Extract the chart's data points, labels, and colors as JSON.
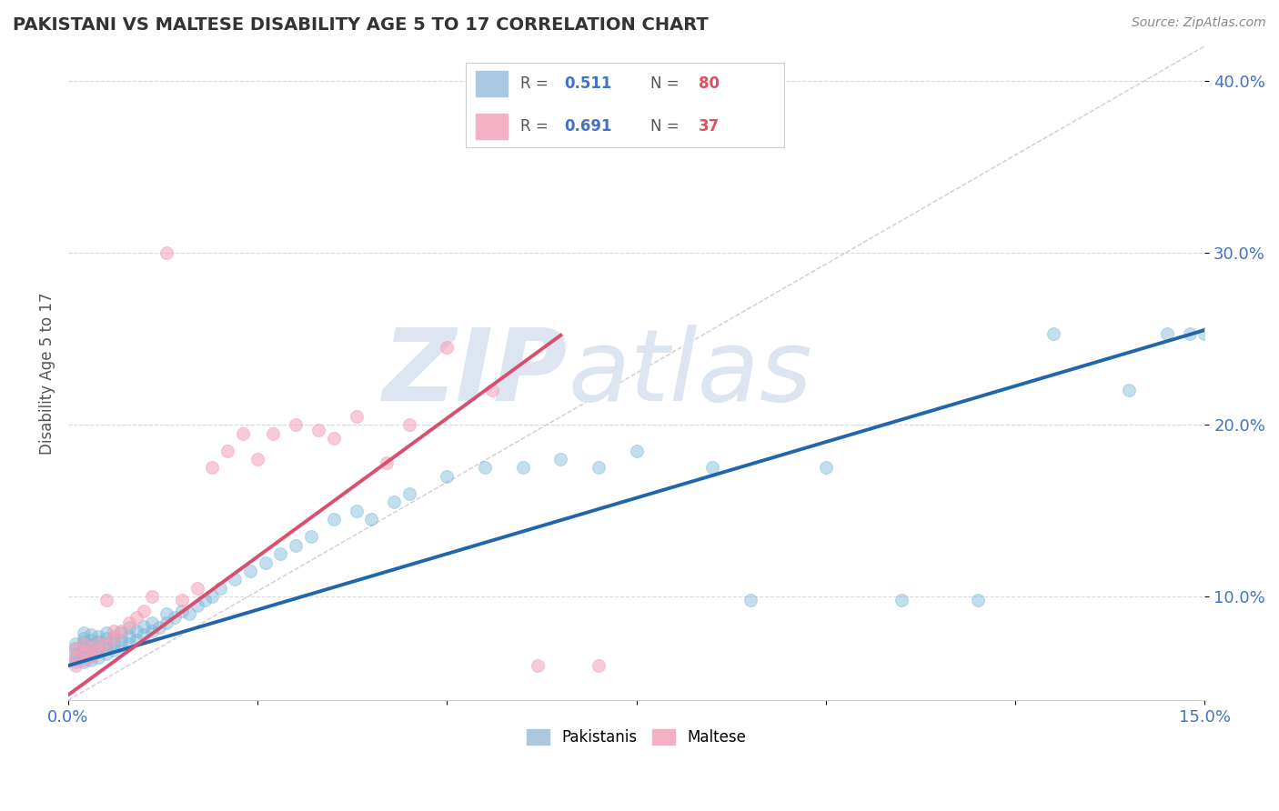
{
  "title": "PAKISTANI VS MALTESE DISABILITY AGE 5 TO 17 CORRELATION CHART",
  "source": "Source: ZipAtlas.com",
  "ylabel_label": "Disability Age 5 to 17",
  "xlim": [
    0.0,
    0.15
  ],
  "ylim": [
    0.04,
    0.42
  ],
  "ytick_positions": [
    0.1,
    0.2,
    0.3,
    0.4
  ],
  "ytick_labels": [
    "10.0%",
    "20.0%",
    "30.0%",
    "40.0%"
  ],
  "xtick_positions": [
    0.0,
    0.025,
    0.05,
    0.075,
    0.1,
    0.125,
    0.15
  ],
  "xtick_labels": [
    "0.0%",
    "",
    "",
    "",
    "",
    "",
    "15.0%"
  ],
  "pakistani_R": "0.511",
  "pakistani_N": "80",
  "maltese_R": "0.691",
  "maltese_N": "37",
  "pakistani_color": "#7ab8d9",
  "maltese_color": "#f5a0b8",
  "pakistani_line_color": "#2166ac",
  "maltese_line_color": "#d94f6e",
  "ref_line_color": "#ccbbcc",
  "background_color": "#ffffff",
  "watermark_color": "#dde5f0",
  "title_color": "#333333",
  "axis_label_color": "#555555",
  "tick_color": "#4472c4",
  "legend_R_color": "#4472c4",
  "legend_N_color": "#e05060",
  "grid_color": "#d0d0d0",
  "pakistani_scatter_x": [
    0.001,
    0.001,
    0.001,
    0.001,
    0.001,
    0.002,
    0.002,
    0.002,
    0.002,
    0.002,
    0.002,
    0.002,
    0.003,
    0.003,
    0.003,
    0.003,
    0.003,
    0.003,
    0.004,
    0.004,
    0.004,
    0.004,
    0.004,
    0.005,
    0.005,
    0.005,
    0.005,
    0.005,
    0.006,
    0.006,
    0.006,
    0.007,
    0.007,
    0.007,
    0.008,
    0.008,
    0.008,
    0.009,
    0.009,
    0.01,
    0.01,
    0.011,
    0.011,
    0.012,
    0.013,
    0.013,
    0.014,
    0.015,
    0.016,
    0.017,
    0.018,
    0.019,
    0.02,
    0.022,
    0.024,
    0.026,
    0.028,
    0.03,
    0.032,
    0.035,
    0.038,
    0.04,
    0.043,
    0.045,
    0.05,
    0.055,
    0.06,
    0.065,
    0.07,
    0.075,
    0.085,
    0.09,
    0.1,
    0.11,
    0.12,
    0.13,
    0.14,
    0.145,
    0.148,
    0.15
  ],
  "pakistani_scatter_y": [
    0.062,
    0.064,
    0.067,
    0.07,
    0.073,
    0.062,
    0.065,
    0.068,
    0.071,
    0.074,
    0.076,
    0.079,
    0.063,
    0.066,
    0.069,
    0.072,
    0.075,
    0.078,
    0.065,
    0.068,
    0.071,
    0.074,
    0.077,
    0.067,
    0.07,
    0.073,
    0.076,
    0.079,
    0.069,
    0.073,
    0.077,
    0.071,
    0.075,
    0.079,
    0.073,
    0.077,
    0.082,
    0.075,
    0.08,
    0.078,
    0.083,
    0.08,
    0.085,
    0.082,
    0.085,
    0.09,
    0.088,
    0.092,
    0.09,
    0.095,
    0.098,
    0.1,
    0.105,
    0.11,
    0.115,
    0.12,
    0.125,
    0.13,
    0.135,
    0.145,
    0.15,
    0.145,
    0.155,
    0.16,
    0.17,
    0.175,
    0.175,
    0.18,
    0.175,
    0.185,
    0.175,
    0.098,
    0.175,
    0.098,
    0.098,
    0.253,
    0.22,
    0.253,
    0.253,
    0.253
  ],
  "maltese_scatter_x": [
    0.001,
    0.001,
    0.001,
    0.002,
    0.002,
    0.002,
    0.003,
    0.003,
    0.004,
    0.004,
    0.005,
    0.005,
    0.006,
    0.006,
    0.007,
    0.008,
    0.009,
    0.01,
    0.011,
    0.013,
    0.015,
    0.017,
    0.019,
    0.021,
    0.023,
    0.025,
    0.027,
    0.03,
    0.033,
    0.035,
    0.038,
    0.042,
    0.045,
    0.05,
    0.056,
    0.062,
    0.07
  ],
  "maltese_scatter_y": [
    0.06,
    0.065,
    0.07,
    0.063,
    0.068,
    0.073,
    0.065,
    0.07,
    0.068,
    0.073,
    0.098,
    0.073,
    0.076,
    0.08,
    0.08,
    0.085,
    0.088,
    0.092,
    0.1,
    0.3,
    0.098,
    0.105,
    0.175,
    0.185,
    0.195,
    0.18,
    0.195,
    0.2,
    0.197,
    0.192,
    0.205,
    0.178,
    0.2,
    0.245,
    0.22,
    0.06,
    0.06
  ],
  "pakistani_line_x": [
    0.0,
    0.15
  ],
  "pakistani_line_y": [
    0.06,
    0.255
  ],
  "maltese_line_x": [
    0.0,
    0.065
  ],
  "maltese_line_y": [
    0.043,
    0.252
  ],
  "ref_line_x": [
    0.0,
    0.15
  ],
  "ref_line_y": [
    0.04,
    0.42
  ]
}
